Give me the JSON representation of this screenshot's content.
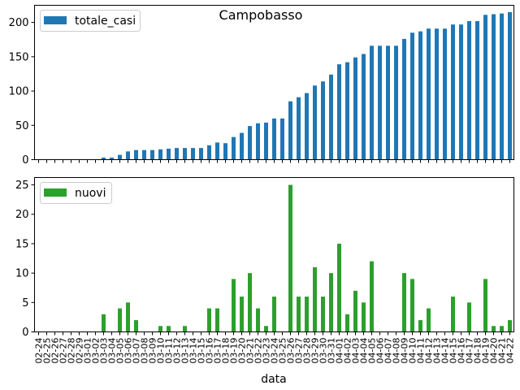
{
  "chart_data": {
    "type": "bar",
    "title": "Campobasso",
    "xlabel": "data",
    "categories": [
      "02-24",
      "02-25",
      "02-26",
      "02-27",
      "02-28",
      "02-29",
      "03-01",
      "03-02",
      "03-03",
      "03-04",
      "03-05",
      "03-06",
      "03-07",
      "03-08",
      "03-09",
      "03-10",
      "03-11",
      "03-12",
      "03-13",
      "03-14",
      "03-15",
      "03-16",
      "03-17",
      "03-18",
      "03-19",
      "03-20",
      "03-21",
      "03-22",
      "03-23",
      "03-24",
      "03-25",
      "03-26",
      "03-27",
      "03-28",
      "03-29",
      "03-30",
      "03-31",
      "04-01",
      "04-02",
      "04-03",
      "04-04",
      "04-05",
      "04-06",
      "04-07",
      "04-08",
      "04-09",
      "04-10",
      "04-11",
      "04-12",
      "04-13",
      "04-14",
      "04-15",
      "04-16",
      "04-17",
      "04-18",
      "04-19",
      "04-20",
      "04-21",
      "04-22"
    ],
    "panels": [
      {
        "series_name": "totale_casi",
        "color": "#1f77b4",
        "ylim": [
          0,
          225
        ],
        "yticks": [
          0,
          50,
          100,
          150,
          200
        ],
        "legend": "top-left",
        "values": [
          0,
          0,
          0,
          0,
          0,
          0,
          0,
          0,
          3,
          3,
          7,
          12,
          14,
          14,
          14,
          15,
          16,
          17,
          17,
          17,
          17,
          21,
          25,
          24,
          33,
          39,
          49,
          53,
          54,
          60,
          60,
          85,
          91,
          97,
          108,
          114,
          124,
          139,
          142,
          149,
          154,
          166,
          166,
          166,
          166,
          176,
          185,
          187,
          191,
          191,
          191,
          197,
          197,
          202,
          202,
          211,
          212,
          213,
          215
        ]
      },
      {
        "series_name": "nuovi",
        "color": "#2ca02c",
        "ylim": [
          0,
          26.25
        ],
        "yticks": [
          0,
          5,
          10,
          15,
          20,
          25
        ],
        "legend": "top-left",
        "values": [
          0,
          0,
          0,
          0,
          0,
          0,
          0,
          0,
          3,
          0,
          4,
          5,
          2,
          0,
          0,
          1,
          1,
          0,
          1,
          0,
          0,
          4,
          4,
          0,
          9,
          6,
          10,
          4,
          1,
          6,
          0,
          25,
          6,
          6,
          11,
          6,
          10,
          15,
          3,
          7,
          5,
          12,
          0,
          0,
          0,
          10,
          9,
          2,
          4,
          0,
          0,
          6,
          0,
          5,
          0,
          9,
          1,
          1,
          2
        ]
      }
    ]
  }
}
